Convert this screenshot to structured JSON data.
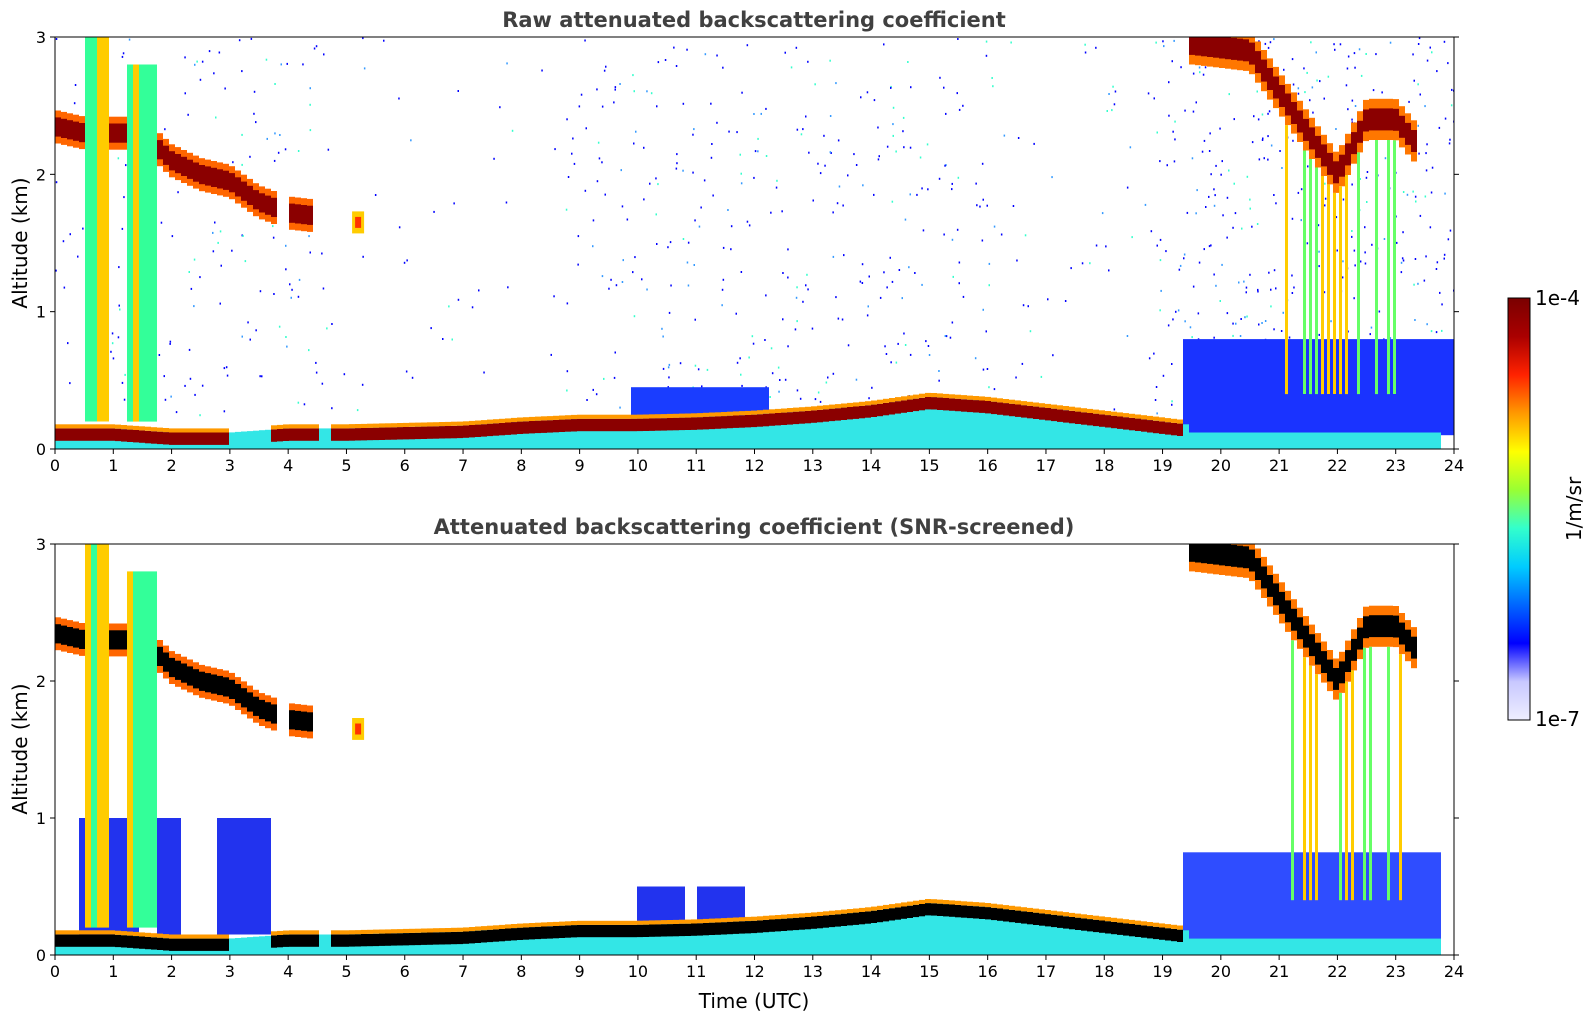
{
  "chart_data": [
    {
      "type": "heatmap",
      "title": "Raw attenuated backscattering coefficient",
      "xlabel": "",
      "ylabel": "Altitude (km)",
      "xlim": [
        0,
        24
      ],
      "ylim": [
        0,
        3
      ],
      "xticks": [
        "0",
        "1",
        "2",
        "3",
        "4",
        "5",
        "6",
        "7",
        "8",
        "9",
        "10",
        "11",
        "12",
        "13",
        "14",
        "15",
        "16",
        "17",
        "18",
        "19",
        "20",
        "21",
        "22",
        "23",
        "24"
      ],
      "yticks": [
        "0",
        "1",
        "2",
        "3"
      ],
      "features": {
        "boundary_layer_aerosol_top_km": [
          {
            "t": 0,
            "z": 0.15
          },
          {
            "t": 1,
            "z": 0.15
          },
          {
            "t": 2,
            "z": 0.12
          },
          {
            "t": 3,
            "z": 0.12
          },
          {
            "t": 4,
            "z": 0.15
          },
          {
            "t": 5,
            "z": 0.15
          },
          {
            "t": 6,
            "z": 0.16
          },
          {
            "t": 7,
            "z": 0.17
          },
          {
            "t": 8,
            "z": 0.2
          },
          {
            "t": 9,
            "z": 0.22
          },
          {
            "t": 10,
            "z": 0.22
          },
          {
            "t": 11,
            "z": 0.23
          },
          {
            "t": 12,
            "z": 0.25
          },
          {
            "t": 13,
            "z": 0.28
          },
          {
            "t": 14,
            "z": 0.32
          },
          {
            "t": 15,
            "z": 0.38
          },
          {
            "t": 16,
            "z": 0.35
          },
          {
            "t": 17,
            "z": 0.3
          },
          {
            "t": 18,
            "z": 0.25
          },
          {
            "t": 19,
            "z": 0.2
          },
          {
            "t": 19.4,
            "z": 0.18
          }
        ],
        "cloud_layer_km": [
          {
            "t": 0,
            "z": 2.35
          },
          {
            "t": 0.5,
            "z": 2.3
          },
          {
            "t": 1,
            "z": 2.3
          },
          {
            "t": 1.5,
            "z": 2.3
          },
          {
            "t": 2,
            "z": 2.1
          },
          {
            "t": 2.5,
            "z": 2.0
          },
          {
            "t": 3,
            "z": 1.95
          },
          {
            "t": 3.5,
            "z": 1.8
          },
          {
            "t": 4,
            "z": 1.72
          },
          {
            "t": 4.4,
            "z": 1.7
          }
        ],
        "isolated_cloud": {
          "t": 5.2,
          "z": 1.65
        },
        "evening_cloud_km": [
          {
            "t": 19.5,
            "z": 2.95
          },
          {
            "t": 20.5,
            "z": 2.9
          },
          {
            "t": 21,
            "z": 2.6
          },
          {
            "t": 21.5,
            "z": 2.3
          },
          {
            "t": 22,
            "z": 2.0
          },
          {
            "t": 22.5,
            "z": 2.4
          },
          {
            "t": 23,
            "z": 2.4
          },
          {
            "t": 23.4,
            "z": 2.2
          }
        ]
      }
    },
    {
      "type": "heatmap",
      "title": "Attenuated backscattering coefficient (SNR-screened)",
      "xlabel": "Time (UTC)",
      "ylabel": "Altitude (km)",
      "xlim": [
        0,
        24
      ],
      "ylim": [
        0,
        3
      ],
      "xticks": [
        "0",
        "1",
        "2",
        "3",
        "4",
        "5",
        "6",
        "7",
        "8",
        "9",
        "10",
        "11",
        "12",
        "13",
        "14",
        "15",
        "16",
        "17",
        "18",
        "19",
        "20",
        "21",
        "22",
        "23",
        "24"
      ],
      "yticks": [
        "0",
        "1",
        "2",
        "3"
      ],
      "saturated_color": "#000000"
    }
  ],
  "colorbar": {
    "label": "1/m/sr",
    "max_label": "1e-4",
    "min_label": "1e-7",
    "scale": "log",
    "colormap": "jet",
    "stops": [
      "#eeeeff",
      "#c8c8ff",
      "#0000ff",
      "#0066ff",
      "#00ccff",
      "#33ffcc",
      "#99ff33",
      "#ffff00",
      "#ff9900",
      "#ff2200",
      "#aa0000",
      "#7a0000"
    ]
  }
}
